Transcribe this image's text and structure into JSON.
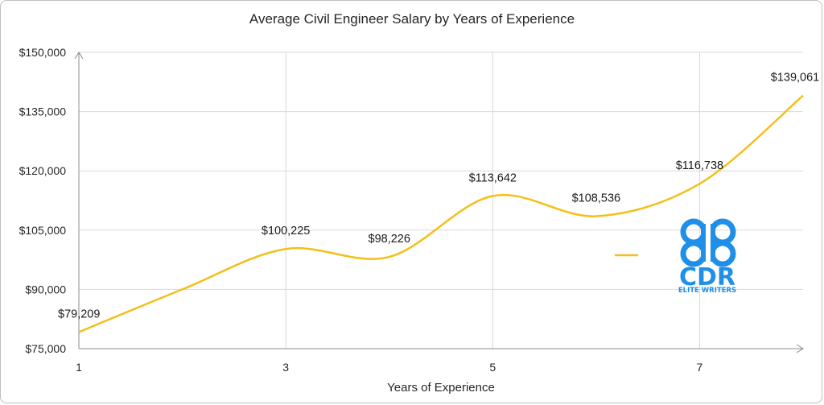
{
  "chart_data": {
    "type": "line",
    "title": "Average Civil Engineer Salary by Years of Experience",
    "xlabel": "Years of Experience",
    "ylabel": "",
    "x": [
      1,
      2,
      3,
      4,
      5,
      6,
      7,
      8
    ],
    "x_ticks": [
      "1",
      "3",
      "5",
      "7"
    ],
    "x_tick_values": [
      1,
      3,
      5,
      7
    ],
    "xlim": [
      1,
      8
    ],
    "ylim": [
      75000,
      150000
    ],
    "y_ticks": [
      "$75,000",
      "$90,000",
      "$105,000",
      "$120,000",
      "$135,000",
      "$150,000"
    ],
    "y_tick_values": [
      75000,
      90000,
      105000,
      120000,
      135000,
      150000
    ],
    "series": [
      {
        "values": [
          79209,
          90000,
          100225,
          98226,
          113642,
          108536,
          116738,
          139061
        ],
        "labels": [
          "$79,209",
          "",
          "$100,225",
          "$98,226",
          "$113,642",
          "$108,536",
          "$116,738",
          "$139,061"
        ],
        "color": "#f5bf19",
        "smooth": true
      }
    ],
    "grid": true,
    "legend": "center-right"
  },
  "logo": {
    "name": "cdr-elite-writers-logo",
    "text": "CDR",
    "subtext": "ELITE WRITERS",
    "color": "#1f8fe8"
  }
}
